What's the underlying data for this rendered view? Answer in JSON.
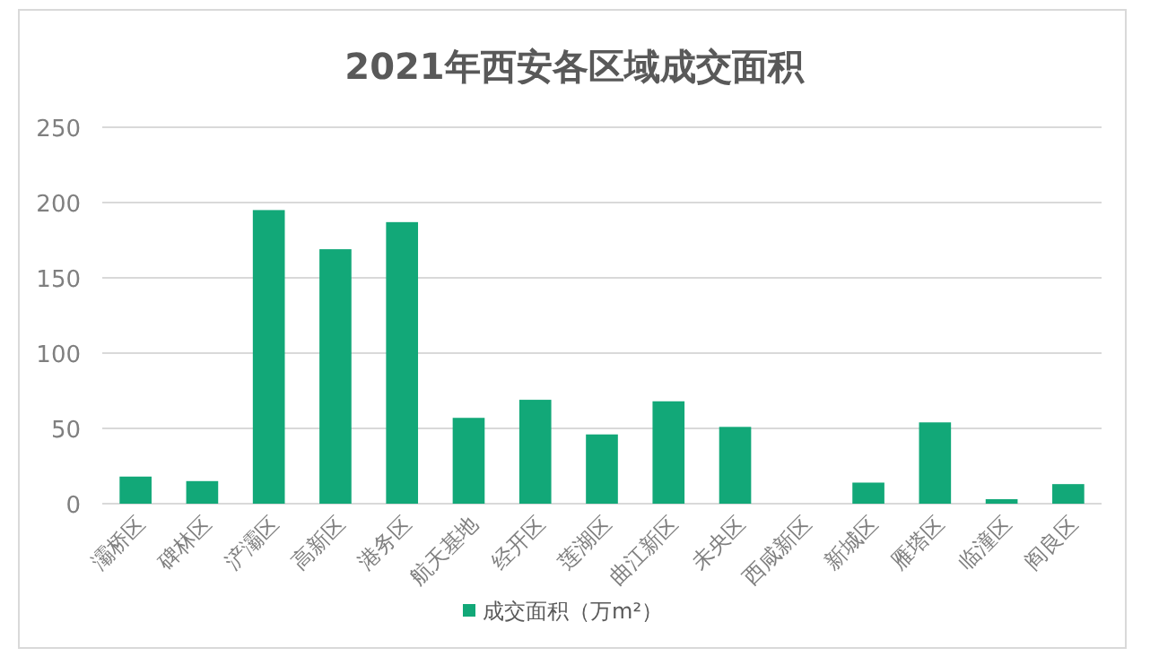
{
  "chart_data": {
    "type": "bar",
    "title": "2021年西安各区域成交面积",
    "categories": [
      "灞桥区",
      "碑林区",
      "浐灞区",
      "高新区",
      "港务区",
      "航天基地",
      "经开区",
      "莲湖区",
      "曲江新区",
      "未央区",
      "西咸新区",
      "新城区",
      "雁塔区",
      "临潼区",
      "阎良区"
    ],
    "series": [
      {
        "name": "成交面积（万m²）",
        "color": "#12a878",
        "values": [
          18,
          15,
          195,
          169,
          187,
          57,
          69,
          46,
          68,
          51,
          0,
          14,
          54,
          3,
          13
        ]
      }
    ],
    "ylim": [
      0,
      250
    ],
    "yticks": [
      0,
      50,
      100,
      150,
      200,
      250
    ],
    "grid": "y",
    "legend": "bottom"
  }
}
